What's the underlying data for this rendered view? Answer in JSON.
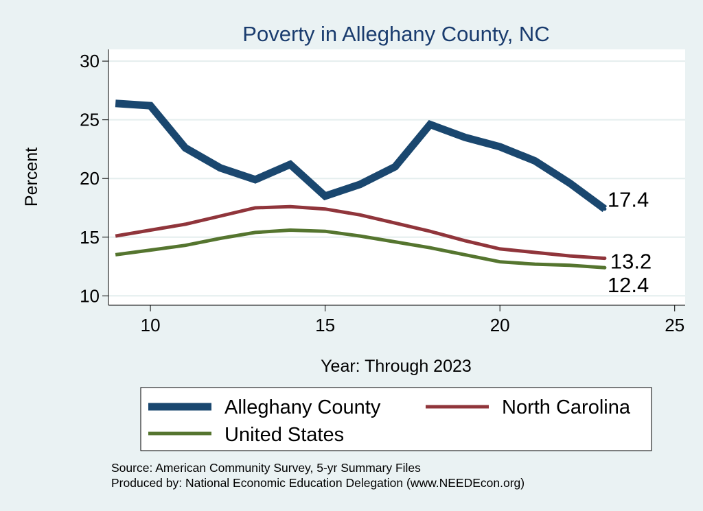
{
  "chart_data": {
    "type": "line",
    "title": "Poverty in Alleghany County, NC",
    "xlabel": "Year: Through 2023",
    "ylabel": "Percent",
    "xlim": [
      8.8,
      25.3
    ],
    "ylim": [
      9.2,
      31
    ],
    "x_ticks": [
      10,
      15,
      20,
      25
    ],
    "y_ticks": [
      10,
      15,
      20,
      25,
      30
    ],
    "grid": true,
    "x": [
      9,
      10,
      11,
      12,
      13,
      14,
      15,
      16,
      17,
      18,
      19,
      20,
      21,
      22,
      23
    ],
    "series": [
      {
        "name": "Alleghany County",
        "color": "#1a476f",
        "values": [
          26.4,
          26.2,
          22.6,
          20.9,
          19.9,
          21.2,
          18.5,
          19.5,
          21.0,
          24.6,
          23.5,
          22.7,
          21.5,
          19.6,
          17.4
        ],
        "end_label": "17.4"
      },
      {
        "name": "North Carolina",
        "color": "#90353b",
        "values": [
          15.1,
          15.6,
          16.1,
          16.8,
          17.5,
          17.6,
          17.4,
          16.9,
          16.2,
          15.5,
          14.7,
          14.0,
          13.7,
          13.4,
          13.2
        ],
        "end_label": "13.2"
      },
      {
        "name": "United States",
        "color": "#55752f",
        "values": [
          13.5,
          13.9,
          14.3,
          14.9,
          15.4,
          15.6,
          15.5,
          15.1,
          14.6,
          14.1,
          13.5,
          12.9,
          12.7,
          12.6,
          12.4
        ],
        "end_label": "12.4"
      }
    ],
    "legend": {
      "position": "bottom",
      "entries": [
        "Alleghany County",
        "North Carolina",
        "United States"
      ]
    },
    "notes": [
      "Source: American Community Survey, 5-yr Summary Files",
      "Produced by: National Economic Education Delegation (www.NEEDEcon.org)"
    ]
  }
}
